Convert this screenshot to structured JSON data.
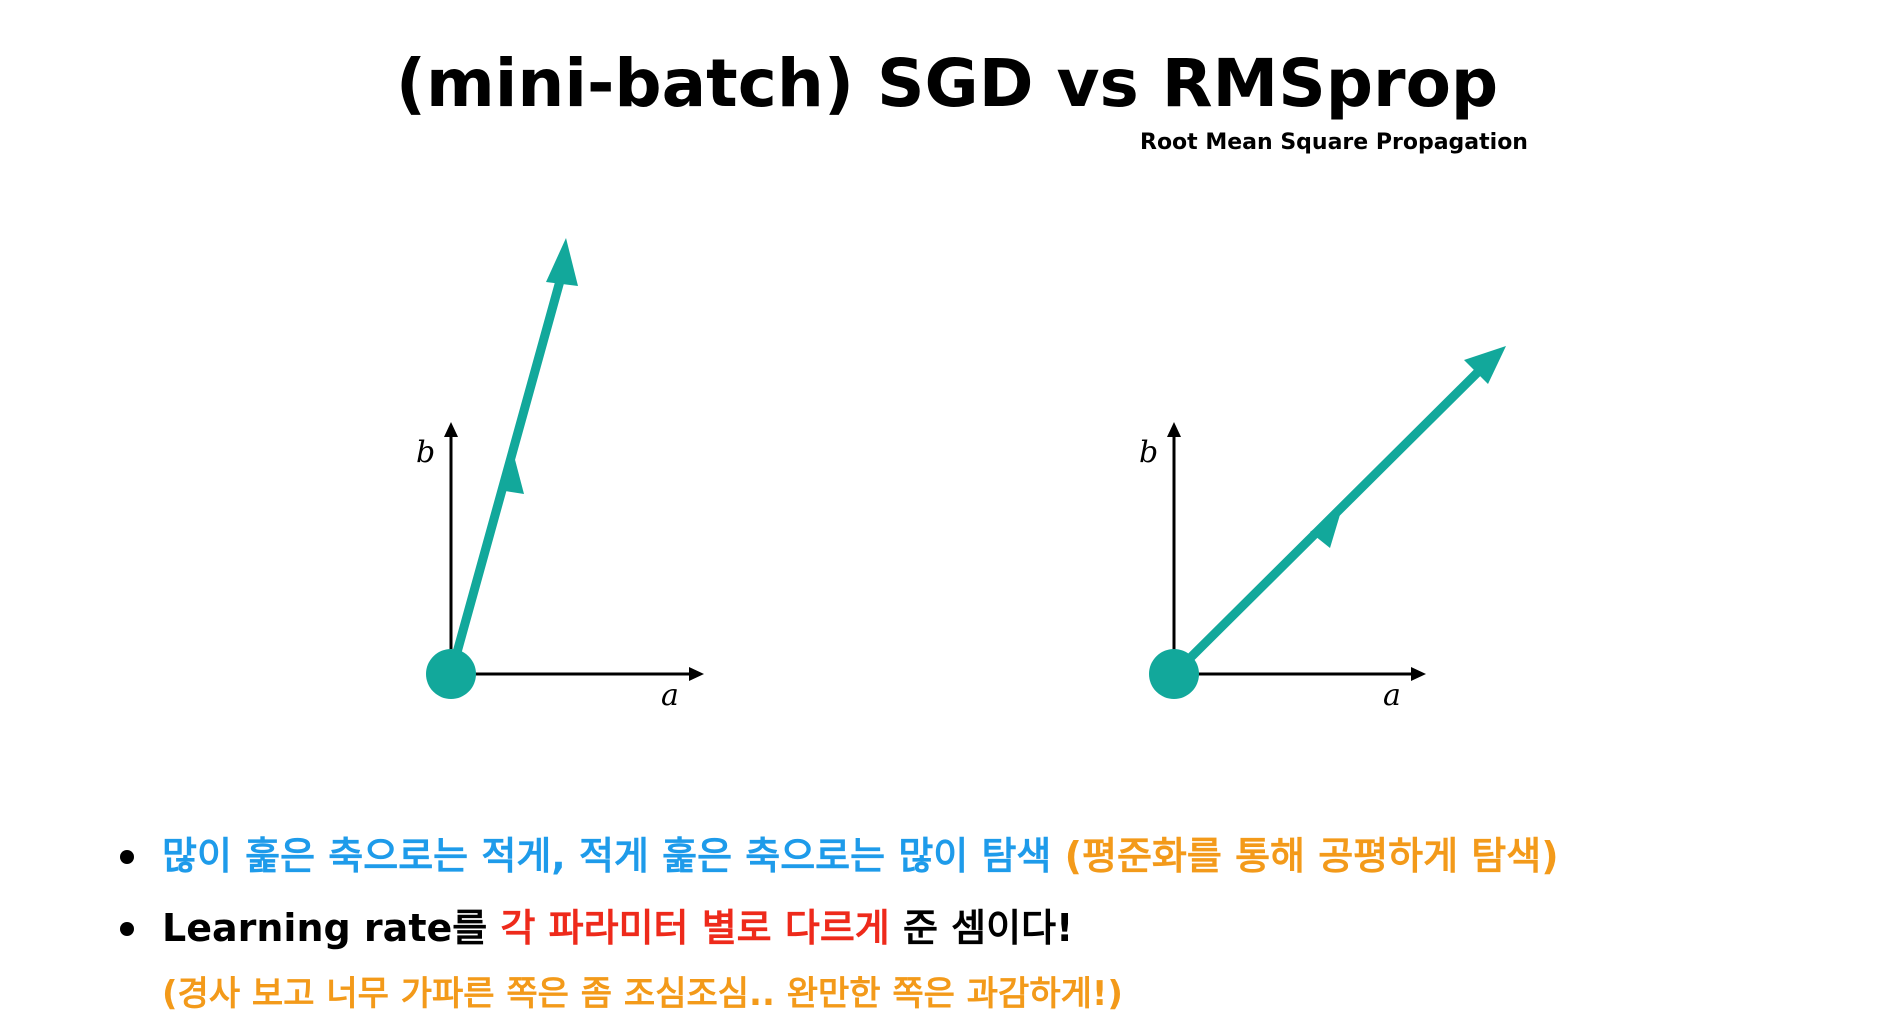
{
  "title": "(mini-batch) SGD vs RMSprop",
  "subtitle": "Root Mean Square Propagation",
  "diagrams": {
    "left": {
      "y_axis_label": "b",
      "x_axis_label": "a"
    },
    "right": {
      "y_axis_label": "b",
      "x_axis_label": "a"
    }
  },
  "colors": {
    "teal": "#12A89B",
    "blue": "#1E9BEA",
    "orange": "#F39A1A",
    "red": "#EE2A1B",
    "black": "#000000"
  },
  "bullets": {
    "line1": {
      "part1": "많이 훑은 축으로는 적게, 적게 훑은 축으로는 많이 탐색",
      "part2": " (평준화를 통해 공평하게 탐색)"
    },
    "line2": {
      "part1": "Learning rate를 ",
      "part2": "각 파라미터 별로 다르게",
      "part3": " 준 셈이다!"
    },
    "line3": "(경사 보고 너무 가파른 쪽은 좀 조심조심.. 완만한 쪽은 과감하게!)"
  }
}
